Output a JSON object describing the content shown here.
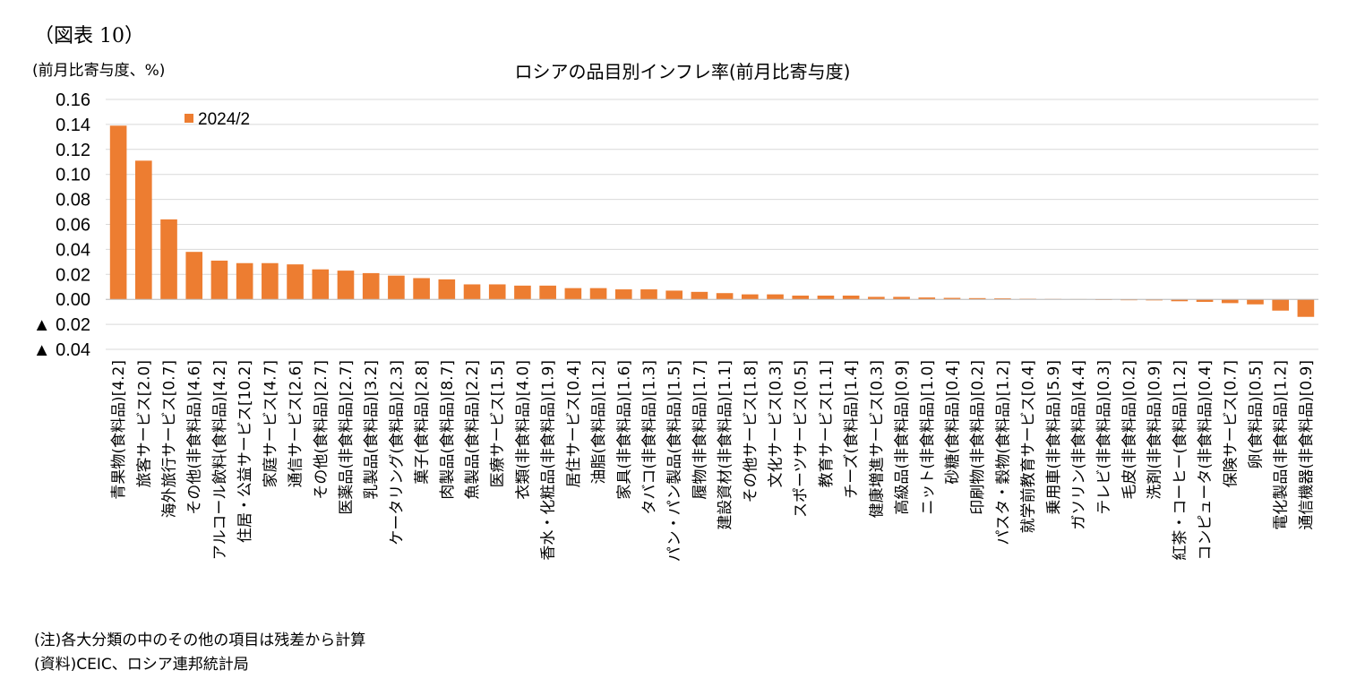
{
  "figure_label": "（図表 10）",
  "unit_label": "(前月比寄与度、%)",
  "notes": {
    "note": "(注)各大分類の中のその他の項目は残差から計算",
    "source": "(資料)CEIC、ロシア連邦統計局"
  },
  "colors": {
    "bar": "#ED7D31",
    "grid": "#D9D9D9",
    "axis": "#BFBFBF"
  },
  "chart_data": {
    "type": "bar",
    "title": "ロシアの品目別インフレ率(前月比寄与度)",
    "ylabel": "(前月比寄与度、%)",
    "xlabel": "",
    "ylim": [
      -0.04,
      0.16
    ],
    "yticks": [
      {
        "value": 0.16,
        "label": "0.16"
      },
      {
        "value": 0.14,
        "label": "0.14"
      },
      {
        "value": 0.12,
        "label": "0.12"
      },
      {
        "value": 0.1,
        "label": "0.10"
      },
      {
        "value": 0.08,
        "label": "0.08"
      },
      {
        "value": 0.06,
        "label": "0.06"
      },
      {
        "value": 0.04,
        "label": "0.04"
      },
      {
        "value": 0.02,
        "label": "0.02"
      },
      {
        "value": 0.0,
        "label": "0.00"
      },
      {
        "value": -0.02,
        "label": "▲ 0.02"
      },
      {
        "value": -0.04,
        "label": "▲ 0.04"
      }
    ],
    "legend": {
      "label": "2024/2",
      "position": "top-left"
    },
    "categories": [
      "青果物(食料品)[4.2]",
      "旅客サービス[2.0]",
      "海外旅行サービス[0.7]",
      "その他(非食料品)[4.6]",
      "アルコール飲料(食料品)[4.2]",
      "住居・公益サービス[10.2]",
      "家庭サービス[4.7]",
      "通信サービス[2.6]",
      "その他(食料品)[2.7]",
      "医薬品(非食料品)[2.7]",
      "乳製品(食料品)[3.2]",
      "ケータリング(食料品)[2.3]",
      "菓子(食料品)[2.8]",
      "肉製品(食料品)[8.7]",
      "魚製品(食料品)[2.2]",
      "医療サービス[1.5]",
      "衣類(非食料品)[4.0]",
      "香水・化粧品(非食料品)[1.9]",
      "居住サービス[0.4]",
      "油脂(食料品)[1.2]",
      "家具(非食料品)[1.6]",
      "タバコ(非食料品)[1.3]",
      "パン・パン製品(食料品)[1.5]",
      "履物(非食料品)[1.7]",
      "建設資材(非食料品)[1.1]",
      "その他サービス[1.8]",
      "文化サービス[0.3]",
      "スポーツサービス[0.5]",
      "教育サービス[1.1]",
      "チーズ(食料品)[1.4]",
      "健康増進サービス[0.3]",
      "高級品(非食料品)[0.9]",
      "ニット(非食料品)[1.0]",
      "砂糖(食料品)[0.4]",
      "印刷物(非食料品)[0.2]",
      "パスタ・穀物(食料品)[1.2]",
      "就学前教育サービス[0.4]",
      "乗用車(非食料品)[5.9]",
      "ガソリン(非食料品)[4.4]",
      "テレビ(非食料品)[0.3]",
      "毛皮(非食料品)[0.2]",
      "洗剤(非食料品)[0.9]",
      "紅茶・コーヒー(食料品)[1.2]",
      "コンピュータ(非食料品)[0.4]",
      "保険サービス[0.7]",
      "卵(食料品)[0.5]",
      "電化製品(非食料品)[1.2]",
      "通信機器(非食料品)[0.9]"
    ],
    "series": [
      {
        "name": "2024/2",
        "values": [
          0.139,
          0.111,
          0.064,
          0.038,
          0.031,
          0.029,
          0.029,
          0.028,
          0.024,
          0.023,
          0.021,
          0.019,
          0.017,
          0.016,
          0.012,
          0.012,
          0.011,
          0.011,
          0.009,
          0.009,
          0.008,
          0.008,
          0.007,
          0.006,
          0.005,
          0.004,
          0.004,
          0.003,
          0.003,
          0.003,
          0.002,
          0.002,
          0.0015,
          0.0012,
          0.001,
          0.0008,
          0.0005,
          0.0003,
          0.0002,
          -0.0005,
          -0.0007,
          -0.0008,
          -0.0015,
          -0.002,
          -0.003,
          -0.004,
          -0.009,
          -0.014
        ]
      }
    ]
  }
}
